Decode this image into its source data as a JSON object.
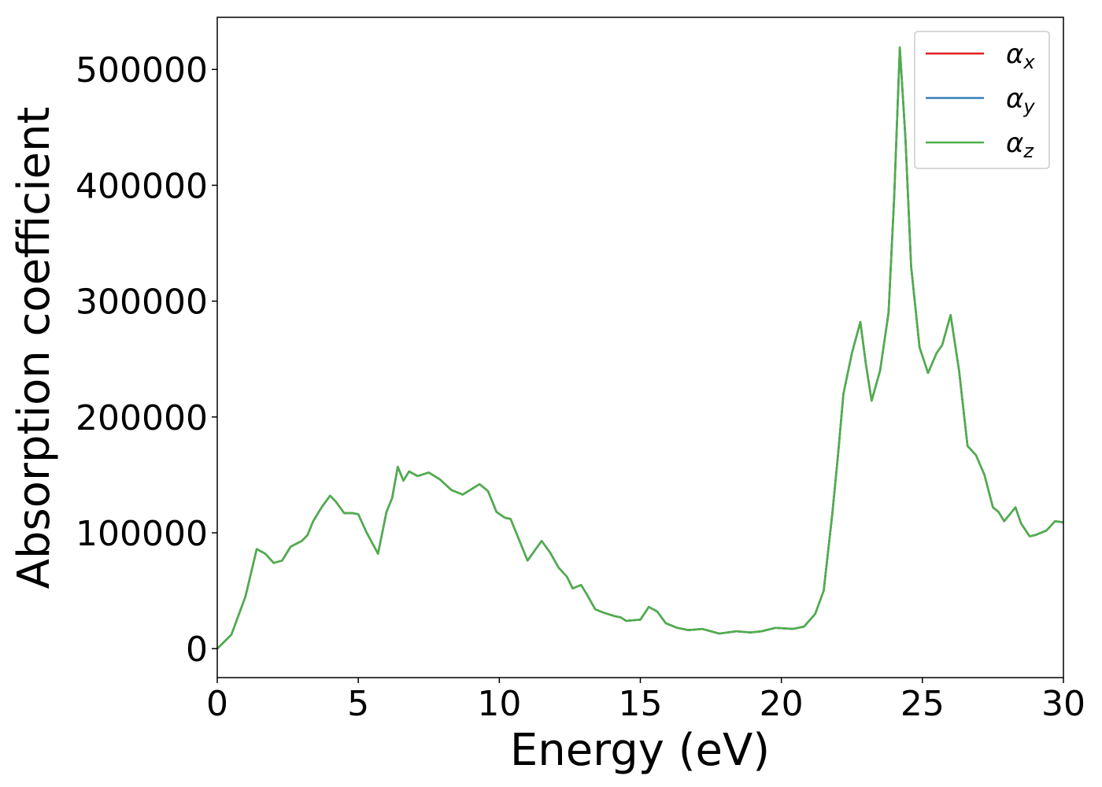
{
  "chart_data": {
    "type": "line",
    "xlabel": "Energy (eV)",
    "ylabel": "Absorption coefficient",
    "x": [
      0,
      0.5,
      1.0,
      1.4,
      1.7,
      2.0,
      2.3,
      2.6,
      3.0,
      3.2,
      3.4,
      3.7,
      4.0,
      4.2,
      4.5,
      4.8,
      5.0,
      5.3,
      5.7,
      6.0,
      6.2,
      6.4,
      6.6,
      6.8,
      7.1,
      7.5,
      7.9,
      8.3,
      8.7,
      8.9,
      9.3,
      9.6,
      9.9,
      10.2,
      10.4,
      10.6,
      11.0,
      11.5,
      11.8,
      12.1,
      12.4,
      12.6,
      12.9,
      13.1,
      13.4,
      13.7,
      14.1,
      14.3,
      14.5,
      15.0,
      15.3,
      15.6,
      15.9,
      16.3,
      16.7,
      17.2,
      17.5,
      17.8,
      18.4,
      18.9,
      19.3,
      19.8,
      20.4,
      20.8,
      21.2,
      21.5,
      21.8,
      22.0,
      22.2,
      22.5,
      22.8,
      23.0,
      23.2,
      23.5,
      23.8,
      24.0,
      24.2,
      24.4,
      24.6,
      24.9,
      25.2,
      25.5,
      25.7,
      26.0,
      26.3,
      26.6,
      26.9,
      27.2,
      27.5,
      27.7,
      27.9,
      28.3,
      28.5,
      28.8,
      29.0,
      29.4,
      29.7,
      30.0
    ],
    "series": [
      {
        "name": "αx",
        "color": "#e41a1c",
        "values": [
          0,
          12000,
          45000,
          86000,
          82000,
          74000,
          76000,
          88000,
          93000,
          98000,
          110000,
          122000,
          132000,
          127000,
          117000,
          117000,
          116000,
          100000,
          82000,
          118000,
          130000,
          157000,
          145000,
          153000,
          149000,
          152000,
          146000,
          137000,
          133000,
          136000,
          142000,
          136000,
          118000,
          113000,
          112000,
          100000,
          76000,
          93000,
          83000,
          70000,
          62000,
          52000,
          55000,
          47000,
          34000,
          31000,
          28000,
          27000,
          24000,
          25000,
          36000,
          32000,
          22000,
          18000,
          16000,
          17000,
          15000,
          13000,
          15000,
          14000,
          15000,
          18000,
          17000,
          19000,
          30000,
          50000,
          115000,
          165000,
          220000,
          255000,
          282000,
          245000,
          214000,
          240000,
          290000,
          390000,
          519000,
          440000,
          330000,
          260000,
          238000,
          255000,
          262000,
          288000,
          240000,
          175000,
          167000,
          150000,
          122000,
          118000,
          110000,
          122000,
          108000,
          97000,
          98000,
          102000,
          110000,
          109000
        ]
      },
      {
        "name": "αy",
        "color": "#377eb8",
        "values": [
          0,
          12000,
          45000,
          86000,
          82000,
          74000,
          76000,
          88000,
          93000,
          98000,
          110000,
          122000,
          132000,
          127000,
          117000,
          117000,
          116000,
          100000,
          82000,
          118000,
          130000,
          157000,
          145000,
          153000,
          149000,
          152000,
          146000,
          137000,
          133000,
          136000,
          142000,
          136000,
          118000,
          113000,
          112000,
          100000,
          76000,
          93000,
          83000,
          70000,
          62000,
          52000,
          55000,
          47000,
          34000,
          31000,
          28000,
          27000,
          24000,
          25000,
          36000,
          32000,
          22000,
          18000,
          16000,
          17000,
          15000,
          13000,
          15000,
          14000,
          15000,
          18000,
          17000,
          19000,
          30000,
          50000,
          115000,
          165000,
          220000,
          255000,
          282000,
          245000,
          214000,
          240000,
          290000,
          390000,
          519000,
          440000,
          330000,
          260000,
          238000,
          255000,
          262000,
          288000,
          240000,
          175000,
          167000,
          150000,
          122000,
          118000,
          110000,
          122000,
          108000,
          97000,
          98000,
          102000,
          110000,
          109000
        ]
      },
      {
        "name": "αz",
        "color": "#4daf4a",
        "values": [
          0,
          12000,
          45000,
          86000,
          82000,
          74000,
          76000,
          88000,
          93000,
          98000,
          110000,
          122000,
          132000,
          127000,
          117000,
          117000,
          116000,
          100000,
          82000,
          118000,
          130000,
          157000,
          145000,
          153000,
          149000,
          152000,
          146000,
          137000,
          133000,
          136000,
          142000,
          136000,
          118000,
          113000,
          112000,
          100000,
          76000,
          93000,
          83000,
          70000,
          62000,
          52000,
          55000,
          47000,
          34000,
          31000,
          28000,
          27000,
          24000,
          25000,
          36000,
          32000,
          22000,
          18000,
          16000,
          17000,
          15000,
          13000,
          15000,
          14000,
          15000,
          18000,
          17000,
          19000,
          30000,
          50000,
          115000,
          165000,
          220000,
          255000,
          282000,
          245000,
          214000,
          240000,
          290000,
          390000,
          519000,
          440000,
          330000,
          260000,
          238000,
          255000,
          262000,
          288000,
          240000,
          175000,
          167000,
          150000,
          122000,
          118000,
          110000,
          122000,
          108000,
          97000,
          98000,
          102000,
          110000,
          109000
        ]
      }
    ],
    "xlim": [
      0,
      30
    ],
    "xticks": [
      0,
      5,
      10,
      15,
      20,
      25,
      30
    ],
    "ylim": [
      -25000,
      545000
    ],
    "yticks": [
      0,
      100000,
      200000,
      300000,
      400000,
      500000
    ],
    "grid": false,
    "legend": "upper right"
  }
}
